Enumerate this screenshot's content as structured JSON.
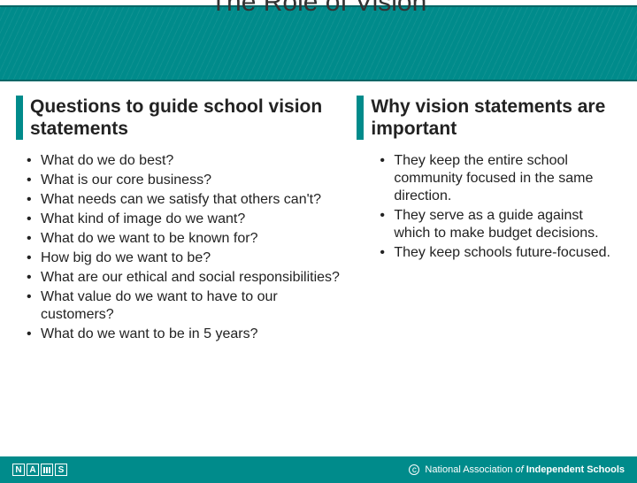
{
  "title": "The Role of Vision",
  "left": {
    "heading": "Questions to guide school vision statements",
    "items": [
      "What do we do best?",
      "What is our core business?",
      "What needs can we satisfy that others can't?",
      "What kind of image do we want?",
      "What do we want to be known for?",
      "How big do we want to be?",
      "What are our ethical and social responsibilities?",
      "What value do we want to have to our customers?",
      "What do we want to be in 5 years?"
    ]
  },
  "right": {
    "heading": "Why vision statements are important",
    "items": [
      "They keep the entire school community focused in the same direction.",
      "They serve as a guide against which to make budget decisions.",
      "They keep schools future-focused."
    ]
  },
  "footer": {
    "logo_letters": [
      "N",
      "A",
      "S"
    ],
    "brand_prefix": "National Association",
    "brand_of": " of ",
    "brand_suffix": "Independent Schools"
  },
  "colors": {
    "accent": "#008b8b",
    "text": "#222222",
    "title": "#333333",
    "footer_text": "#ffffff",
    "background": "#ffffff"
  }
}
